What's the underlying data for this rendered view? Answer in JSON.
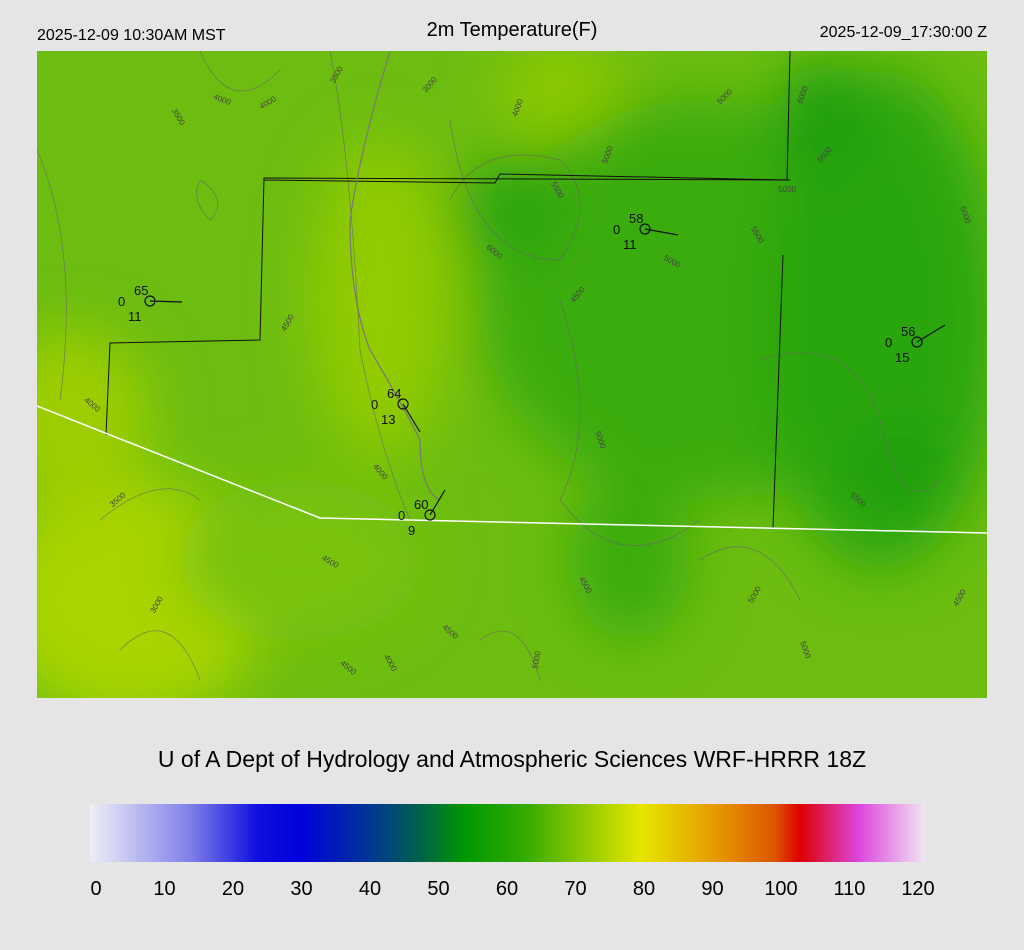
{
  "header": {
    "left": "2025-12-09 10:30AM MST",
    "title": "2m Temperature(F)",
    "right": "2025-12-09_17:30:00 Z"
  },
  "stations": [
    {
      "temp": "65",
      "left": "0",
      "bottom": "11"
    },
    {
      "temp": "58",
      "left": "0",
      "bottom": "11"
    },
    {
      "temp": "56",
      "left": "0",
      "bottom": "15"
    },
    {
      "temp": "64",
      "left": "0",
      "bottom": "13"
    },
    {
      "temp": "60",
      "left": "0",
      "bottom": "9"
    }
  ],
  "contour_labels": [
    "3500",
    "4000",
    "4000",
    "3500",
    "3000",
    "4000",
    "5000",
    "6000",
    "5000",
    "5500",
    "5500",
    "5000",
    "5500",
    "6000",
    "5000",
    "5000",
    "4500",
    "4500",
    "4000",
    "4000",
    "3500",
    "5000",
    "5500",
    "4500",
    "4500",
    "3000",
    "4500",
    "5000",
    "4500",
    "4500",
    "4000",
    "5000",
    "5000"
  ],
  "footer": {
    "credit": "U of A Dept of Hydrology and Atmospheric Sciences WRF-HRRR 18Z"
  },
  "colorbar": {
    "ticks": [
      0,
      10,
      20,
      30,
      40,
      50,
      60,
      70,
      80,
      90,
      100,
      110,
      120
    ]
  }
}
